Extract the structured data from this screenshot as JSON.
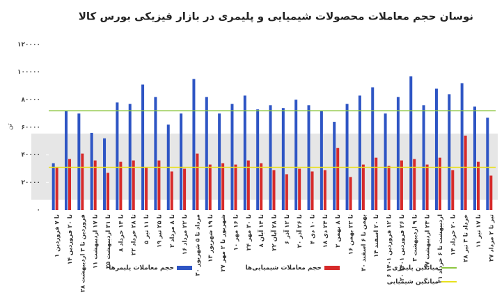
{
  "chart_data": {
    "type": "bar",
    "title": "نوسان حجم معاملات محصولات شیمیایی و پلیمری در بازار فیزیکی بورس کالا",
    "y_label": "تن",
    "categories": [
      "۱ تا ۷ فروردین",
      "۱۴ تا ۲۰ فروردین",
      "۲۸ فروردین تا ۳ اردیبهشت",
      "۱۱ تا ۱۷ اردیبهشت",
      "۲۵ تا ۳۱ اردیبهشت",
      "۸ تا ۱۴ خرداد",
      "۲۲ تا ۲۸ خرداد",
      "۵ تا ۱۱ تیر",
      "۱۹ تا ۲۵ تیر",
      "۲ تا ۸ مرداد",
      "۱۶ تا ۲۲ مرداد",
      "۳۰ مرداد تا ۵ شهریور",
      "۱۳ تا ۱۹ شهریور",
      "۲۷ شهریور تا ۲ مهر",
      "۱۰ تا ۱۶ مهر",
      "۲۴ تا ۳۰ مهر",
      "۸ تا ۱۴ آبان",
      "۲۲ تا ۲۸ آبان",
      "۶ تا ۱۲ آذر",
      "۲۰ تا ۲۶ آذر",
      "۴ تا ۱۰ دی",
      "۱۸ تا ۲۴ دی",
      "۲ تا ۸ بهمن",
      "۱۶ تا ۲۲ بهمن",
      "۳۰ بهمن تا ۶ اسفند",
      "۱۴ تا ۲۰ اسفند",
      "۶ تا ۱۲ فروردین ۱۴۰۱",
      "۲۰ تا ۲۶ فروردین ۱۴۰۱",
      "۳ تا ۹ اردیبهشت",
      "۱۷ تا ۲۳ اردیبهشت",
      "۳۱ اردیبهشت تا ۶ خرداد",
      "۱۴ تا ۲۰ خرداد",
      "۲۸ خرداد تا ۳ تیر",
      "۱۱ تا ۱۷ تیر",
      "۲۷ تیر تا ۲ مرداد"
    ],
    "series": [
      {
        "name": "حجم معاملات پلیمرها",
        "color": "#2e55c4",
        "values": [
          34000,
          72000,
          70000,
          56000,
          52000,
          78000,
          77000,
          91000,
          82000,
          62000,
          70000,
          95000,
          82000,
          70000,
          77000,
          83000,
          73000,
          76000,
          74000,
          80000,
          76000,
          72000,
          64000,
          77000,
          83000,
          89000,
          70000,
          82000,
          97000,
          76000,
          88000,
          84000,
          92000,
          75000,
          67000
        ]
      },
      {
        "name": "حجم معاملات شیمیایی‌ها",
        "color": "#d62a2a",
        "values": [
          31000,
          37000,
          41000,
          36000,
          27000,
          35000,
          36000,
          31000,
          36000,
          28000,
          30000,
          41000,
          33000,
          34000,
          33000,
          36000,
          34000,
          29000,
          26000,
          30000,
          28000,
          29000,
          45000,
          24000,
          33000,
          38000,
          32000,
          36000,
          37000,
          33000,
          38000,
          29000,
          54000,
          35000,
          25000
        ]
      }
    ],
    "reference_lines": [
      {
        "name": "میانگین پلیمری",
        "color": "#8cc63f",
        "value": 72000
      },
      {
        "name": "میانگین شیمیایی",
        "color": "#e8e01e",
        "value": 31000
      }
    ],
    "ylim": [
      0,
      120000
    ],
    "yticks": [
      {
        "value": 0,
        "label": "۰"
      },
      {
        "value": 20000,
        "label": "۲۰۰۰۰"
      },
      {
        "value": 40000,
        "label": "۴۰۰۰۰"
      },
      {
        "value": 60000,
        "label": "۶۰۰۰۰"
      },
      {
        "value": 80000,
        "label": "۸۰۰۰۰"
      },
      {
        "value": 100000,
        "label": "۱۰۰۰۰۰"
      },
      {
        "value": 120000,
        "label": "۱۲۰۰۰۰"
      }
    ]
  }
}
